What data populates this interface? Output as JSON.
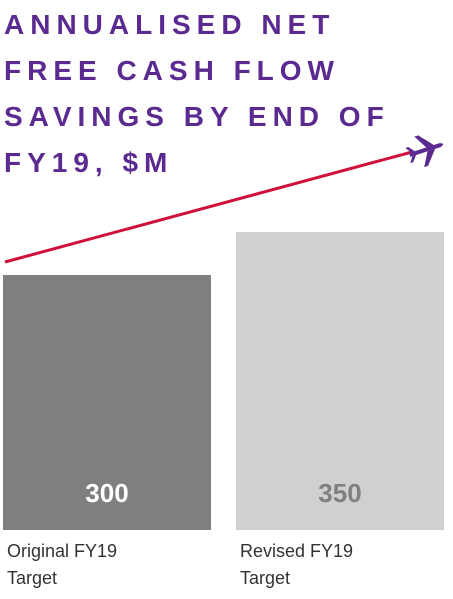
{
  "chart_data": {
    "type": "bar",
    "title": "ANNUALISED NET FREE CASH FLOW SAVINGS BY END OF FY19, $M",
    "categories": [
      "Original FY19 Target",
      "Revised FY19 Target"
    ],
    "values": [
      300,
      350
    ],
    "colors": [
      "#7f7f7f",
      "#d0d0d0"
    ],
    "value_label_colors": [
      "#ffffff",
      "#808080"
    ]
  }
}
